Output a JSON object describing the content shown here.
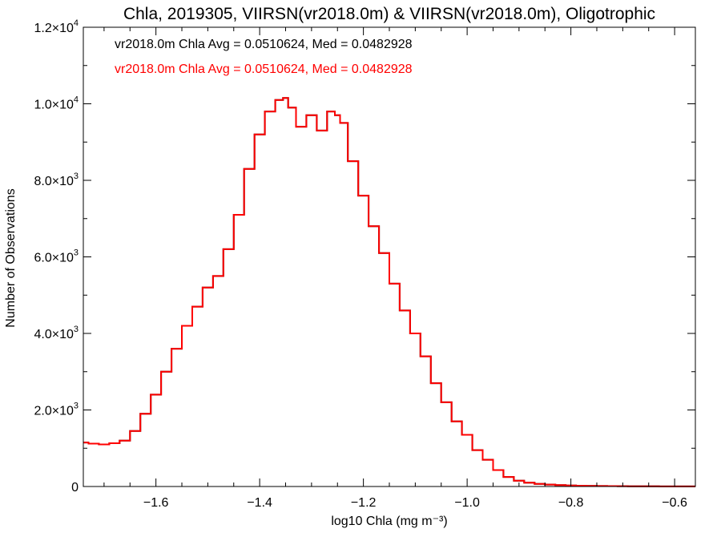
{
  "chart_data": {
    "type": "line",
    "title": "Chla, 2019305, VIIRSN(vr2018.0m) & VIIRSN(vr2018.0m), Oligotrophic",
    "xlabel": "log10 Chla (mg m⁻³)",
    "ylabel": "Number of Observations",
    "xlim": [
      -1.74,
      -0.56
    ],
    "ylim": [
      0,
      12000
    ],
    "xticks": [
      {
        "value": -1.6,
        "label": "−1.6"
      },
      {
        "value": -1.4,
        "label": "−1.4"
      },
      {
        "value": -1.2,
        "label": "−1.2"
      },
      {
        "value": -1.0,
        "label": "−1.0"
      },
      {
        "value": -0.8,
        "label": "−0.8"
      },
      {
        "value": -0.6,
        "label": "−0.6"
      }
    ],
    "yticks": [
      {
        "value": 0,
        "mant": "0",
        "exp": ""
      },
      {
        "value": 2000,
        "mant": "2.0×10",
        "exp": "3"
      },
      {
        "value": 4000,
        "mant": "4.0×10",
        "exp": "3"
      },
      {
        "value": 6000,
        "mant": "6.0×10",
        "exp": "3"
      },
      {
        "value": 8000,
        "mant": "8.0×10",
        "exp": "3"
      },
      {
        "value": 10000,
        "mant": "1.0×10",
        "exp": "4"
      },
      {
        "value": 12000,
        "mant": "1.2×10",
        "exp": "4"
      }
    ],
    "grid": false,
    "series": [
      {
        "name": "vr2018.0m Chla Avg = 0.0510624, Med = 0.0482928",
        "color": "#000000",
        "x": [
          -1.74,
          -1.72,
          -1.7,
          -1.68,
          -1.66,
          -1.64,
          -1.62,
          -1.6,
          -1.58,
          -1.56,
          -1.54,
          -1.52,
          -1.5,
          -1.48,
          -1.46,
          -1.44,
          -1.42,
          -1.4,
          -1.38,
          -1.36,
          -1.35,
          -1.34,
          -1.32,
          -1.3,
          -1.28,
          -1.26,
          -1.25,
          -1.24,
          -1.22,
          -1.2,
          -1.18,
          -1.16,
          -1.14,
          -1.12,
          -1.1,
          -1.08,
          -1.06,
          -1.04,
          -1.02,
          -1.0,
          -0.98,
          -0.96,
          -0.94,
          -0.92,
          -0.9,
          -0.88,
          -0.86,
          -0.84,
          -0.82,
          -0.8,
          -0.78,
          -0.76,
          -0.74,
          -0.72,
          -0.7,
          -0.68,
          -0.66,
          -0.64,
          -0.62,
          -0.6,
          -0.58,
          -0.56
        ],
        "y": [
          1150,
          1120,
          1100,
          1130,
          1200,
          1450,
          1900,
          2400,
          3000,
          3600,
          4200,
          4700,
          5200,
          5500,
          6200,
          7100,
          8300,
          9200,
          9800,
          10100,
          10150,
          9900,
          9400,
          9700,
          9300,
          9800,
          9700,
          9500,
          8500,
          7600,
          6800,
          6100,
          5300,
          4600,
          4000,
          3400,
          2700,
          2200,
          1700,
          1350,
          950,
          700,
          430,
          250,
          150,
          100,
          70,
          50,
          35,
          25,
          20,
          15,
          12,
          10,
          8,
          6,
          5,
          4,
          3,
          2,
          2,
          2
        ]
      },
      {
        "name": "vr2018.0m Chla Avg = 0.0510624, Med = 0.0482928",
        "color": "#ff0000",
        "x": [
          -1.74,
          -1.72,
          -1.7,
          -1.68,
          -1.66,
          -1.64,
          -1.62,
          -1.6,
          -1.58,
          -1.56,
          -1.54,
          -1.52,
          -1.5,
          -1.48,
          -1.46,
          -1.44,
          -1.42,
          -1.4,
          -1.38,
          -1.36,
          -1.35,
          -1.34,
          -1.32,
          -1.3,
          -1.28,
          -1.26,
          -1.25,
          -1.24,
          -1.22,
          -1.2,
          -1.18,
          -1.16,
          -1.14,
          -1.12,
          -1.1,
          -1.08,
          -1.06,
          -1.04,
          -1.02,
          -1.0,
          -0.98,
          -0.96,
          -0.94,
          -0.92,
          -0.9,
          -0.88,
          -0.86,
          -0.84,
          -0.82,
          -0.8,
          -0.78,
          -0.76,
          -0.74,
          -0.72,
          -0.7,
          -0.68,
          -0.66,
          -0.64,
          -0.62,
          -0.6,
          -0.58,
          -0.56
        ],
        "y": [
          1150,
          1120,
          1100,
          1130,
          1200,
          1450,
          1900,
          2400,
          3000,
          3600,
          4200,
          4700,
          5200,
          5500,
          6200,
          7100,
          8300,
          9200,
          9800,
          10100,
          10150,
          9900,
          9400,
          9700,
          9300,
          9800,
          9700,
          9500,
          8500,
          7600,
          6800,
          6100,
          5300,
          4600,
          4000,
          3400,
          2700,
          2200,
          1700,
          1350,
          950,
          700,
          430,
          250,
          150,
          100,
          70,
          50,
          35,
          25,
          20,
          15,
          12,
          10,
          8,
          6,
          5,
          4,
          3,
          2,
          2,
          2
        ]
      }
    ],
    "annotations": [
      {
        "text": "vr2018.0m Chla Avg = 0.0510624, Med = 0.0482928",
        "color": "#000000"
      },
      {
        "text": "vr2018.0m Chla Avg = 0.0510624, Med = 0.0482928",
        "color": "#ff0000"
      }
    ]
  }
}
